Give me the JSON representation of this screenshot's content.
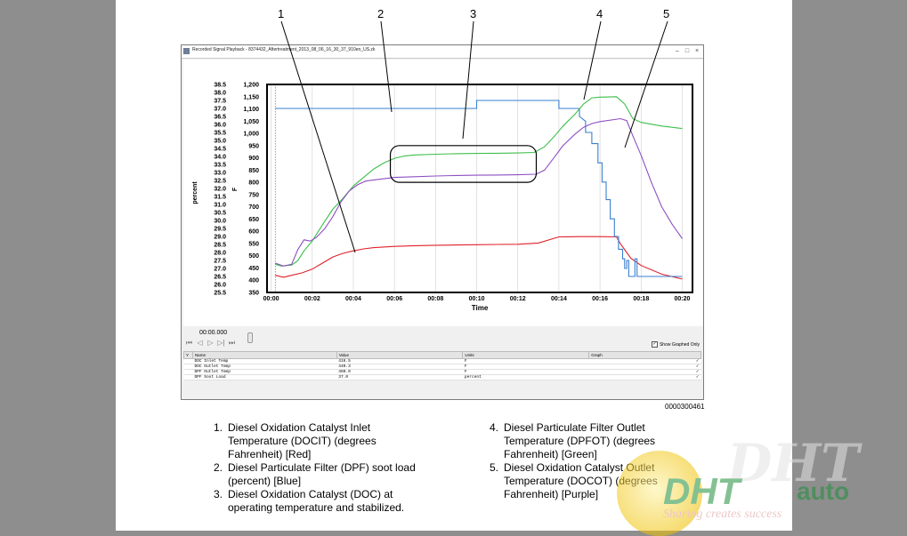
{
  "callouts": [
    "1",
    "2",
    "3",
    "4",
    "5"
  ],
  "window": {
    "title": "Recorded Signal Playback - 8374432_Aftertreatment_2013_08_06_16_30_37_910en_US.zk",
    "minimize": "–",
    "maximize": "□",
    "close": "×"
  },
  "chart_data": {
    "type": "line",
    "xlabel": "Time",
    "x_ticks": [
      "00:00",
      "00:02",
      "00:04",
      "00:06",
      "00:08",
      "00:10",
      "00:12",
      "00:14",
      "00:16",
      "00:18",
      "00:20"
    ],
    "y_left_label": "percent",
    "y_left_ticks": [
      "38.5",
      "38.0",
      "37.5",
      "37.0",
      "36.5",
      "36.0",
      "35.5",
      "35.0",
      "34.5",
      "34.0",
      "33.5",
      "33.0",
      "32.5",
      "32.0",
      "31.5",
      "31.0",
      "30.5",
      "30.0",
      "29.5",
      "29.0",
      "28.5",
      "28.0",
      "27.5",
      "27.0",
      "26.5",
      "26.0",
      "25.5"
    ],
    "y_left_range": [
      25.5,
      38.5
    ],
    "y_right_label": "F",
    "y_right_ticks": [
      "1,200",
      "1,150",
      "1,100",
      "1,050",
      "1,000",
      "950",
      "900",
      "850",
      "800",
      "750",
      "700",
      "650",
      "600",
      "550",
      "500",
      "450",
      "400",
      "350"
    ],
    "y_right_range": [
      350,
      1200
    ],
    "x_range_min": [
      -0.2,
      20.5
    ],
    "cursor_x_min": 0.2,
    "series": [
      {
        "key": "doc_inlet",
        "color": "#e0202a",
        "axis": "F",
        "points": [
          [
            0.2,
            420
          ],
          [
            0.6,
            412
          ],
          [
            1.0,
            420
          ],
          [
            1.5,
            430
          ],
          [
            2.0,
            445
          ],
          [
            2.5,
            470
          ],
          [
            3.0,
            495
          ],
          [
            3.5,
            510
          ],
          [
            4.0,
            520
          ],
          [
            4.5,
            528
          ],
          [
            5.0,
            533
          ],
          [
            6.0,
            538
          ],
          [
            7.0,
            541
          ],
          [
            8.0,
            543
          ],
          [
            9.0,
            544
          ],
          [
            10.0,
            545
          ],
          [
            11.0,
            546
          ],
          [
            12.0,
            547
          ],
          [
            13.0,
            552
          ],
          [
            14.0,
            577
          ],
          [
            15.0,
            578
          ],
          [
            16.0,
            578
          ],
          [
            16.8,
            577
          ],
          [
            17.0,
            548
          ],
          [
            17.5,
            490
          ],
          [
            18.0,
            460
          ],
          [
            19.0,
            425
          ],
          [
            20.0,
            405
          ]
        ]
      },
      {
        "key": "dpf_soot_load",
        "color": "#3a7fd0",
        "axis": "percent",
        "points": [
          [
            0.2,
            37.0
          ],
          [
            10.0,
            37.0
          ],
          [
            10.0,
            37.5
          ],
          [
            14.0,
            37.5
          ],
          [
            14.0,
            37.0
          ],
          [
            15.0,
            37.0
          ],
          [
            15.0,
            36.5
          ],
          [
            15.3,
            36.2
          ],
          [
            15.3,
            35.5
          ],
          [
            15.6,
            35.5
          ],
          [
            15.6,
            34.8
          ],
          [
            15.9,
            34.8
          ],
          [
            15.9,
            33.6
          ],
          [
            16.1,
            33.6
          ],
          [
            16.1,
            32.4
          ],
          [
            16.3,
            32.4
          ],
          [
            16.3,
            31.3
          ],
          [
            16.5,
            31.3
          ],
          [
            16.5,
            30.1
          ],
          [
            16.7,
            30.1
          ],
          [
            16.7,
            29.0
          ],
          [
            16.9,
            29.0
          ],
          [
            16.9,
            28.2
          ],
          [
            17.1,
            28.2
          ],
          [
            17.1,
            27.6
          ],
          [
            17.2,
            27.6
          ],
          [
            17.2,
            27.0
          ],
          [
            17.3,
            27.0
          ],
          [
            17.3,
            27.5
          ],
          [
            17.4,
            27.5
          ],
          [
            17.4,
            26.5
          ],
          [
            17.7,
            26.5
          ],
          [
            17.7,
            27.6
          ],
          [
            17.8,
            27.6
          ],
          [
            17.8,
            26.5
          ],
          [
            20.0,
            26.5
          ]
        ]
      },
      {
        "key": "dpf_outlet",
        "color": "#3cbf4a",
        "axis": "F",
        "points": [
          [
            0.2,
            465
          ],
          [
            0.5,
            458
          ],
          [
            1.0,
            462
          ],
          [
            1.3,
            480
          ],
          [
            1.6,
            520
          ],
          [
            2.0,
            560
          ],
          [
            2.3,
            600
          ],
          [
            2.6,
            640
          ],
          [
            3.0,
            690
          ],
          [
            3.5,
            735
          ],
          [
            4.0,
            785
          ],
          [
            4.5,
            820
          ],
          [
            5.0,
            855
          ],
          [
            5.5,
            880
          ],
          [
            6.0,
            898
          ],
          [
            6.5,
            908
          ],
          [
            7.0,
            912
          ],
          [
            8.0,
            915
          ],
          [
            9.0,
            917
          ],
          [
            10.0,
            918
          ],
          [
            11.0,
            919
          ],
          [
            12.0,
            920
          ],
          [
            12.8,
            922
          ],
          [
            13.3,
            945
          ],
          [
            13.8,
            990
          ],
          [
            14.2,
            1030
          ],
          [
            14.8,
            1080
          ],
          [
            15.2,
            1120
          ],
          [
            15.6,
            1145
          ],
          [
            16.0,
            1148
          ],
          [
            16.8,
            1150
          ],
          [
            17.2,
            1120
          ],
          [
            17.6,
            1060
          ],
          [
            18.0,
            1045
          ],
          [
            19.0,
            1030
          ],
          [
            20.0,
            1020
          ]
        ]
      },
      {
        "key": "doc_outlet",
        "color": "#8e4fc2",
        "axis": "F",
        "points": [
          [
            0.2,
            470
          ],
          [
            0.6,
            458
          ],
          [
            1.0,
            465
          ],
          [
            1.3,
            525
          ],
          [
            1.6,
            565
          ],
          [
            1.9,
            560
          ],
          [
            2.2,
            575
          ],
          [
            2.6,
            610
          ],
          [
            3.0,
            660
          ],
          [
            3.4,
            720
          ],
          [
            3.8,
            765
          ],
          [
            4.2,
            790
          ],
          [
            4.6,
            805
          ],
          [
            5.0,
            810
          ],
          [
            6.0,
            820
          ],
          [
            7.0,
            823
          ],
          [
            8.0,
            826
          ],
          [
            9.0,
            828
          ],
          [
            10.0,
            829
          ],
          [
            11.0,
            830
          ],
          [
            12.0,
            831
          ],
          [
            12.9,
            833
          ],
          [
            13.3,
            850
          ],
          [
            13.8,
            905
          ],
          [
            14.2,
            950
          ],
          [
            14.8,
            998
          ],
          [
            15.2,
            1025
          ],
          [
            15.6,
            1040
          ],
          [
            16.0,
            1048
          ],
          [
            17.0,
            1060
          ],
          [
            17.3,
            1052
          ],
          [
            17.6,
            990
          ],
          [
            18.0,
            910
          ],
          [
            18.5,
            800
          ],
          [
            19.0,
            700
          ],
          [
            19.5,
            630
          ],
          [
            20.0,
            570
          ]
        ]
      }
    ],
    "highlight_region": {
      "x": [
        5.8,
        12.9
      ],
      "y": [
        800,
        950
      ]
    }
  },
  "playback": {
    "time": "00:00.000",
    "buttons": [
      "⏮",
      "◁",
      "▷",
      "▷|",
      "⏭"
    ],
    "show_graphed": "Show Graphed Only"
  },
  "table": {
    "headers": [
      "Y",
      "Name",
      "Value",
      "Units",
      "Graph"
    ],
    "rows": [
      {
        "name": "DOC Inlet Temp",
        "value": "416.5",
        "units": "F",
        "graph": "✓"
      },
      {
        "name": "DOC Outlet Temp",
        "value": "440.3",
        "units": "F",
        "graph": "✓"
      },
      {
        "name": "DPF Outlet Temp",
        "value": "460.0",
        "units": "F",
        "graph": "✓"
      },
      {
        "name": "DPF Soot Load",
        "value": "37.0",
        "units": "percent",
        "graph": "✓"
      }
    ]
  },
  "figure_id": "0000300461",
  "legend": {
    "left": [
      {
        "num": "1.",
        "text": "Diesel Oxidation Catalyst Inlet Temperature (DOCIT) (degrees Fahrenheit) [Red]"
      },
      {
        "num": "2.",
        "text": "Diesel Particulate Filter (DPF) soot load (percent) [Blue]"
      },
      {
        "num": "3.",
        "text": "Diesel Oxidation Catalyst (DOC) at operating temperature and stabilized."
      }
    ],
    "right": [
      {
        "num": "4.",
        "text": "Diesel Particulate Filter Outlet Temperature (DPFOT) (degrees Fahrenheit) [Green]"
      },
      {
        "num": "5.",
        "text": "Diesel Oxidation Catalyst Outlet Temperature (DOCOT) (degrees Fahrenheit) [Purple]"
      }
    ]
  },
  "watermark": {
    "brand": "DHT",
    "brand2": "DHT",
    "suffix": "auto",
    "slogan": "Sharing creates success"
  },
  "colors": {
    "page_bg": "#8e8e8e",
    "paper": "#ffffff",
    "red": "#e0202a",
    "blue": "#3a7fd0",
    "green": "#3cbf4a",
    "purple": "#8e4fc2",
    "brand_green": "#1f8f3a"
  }
}
